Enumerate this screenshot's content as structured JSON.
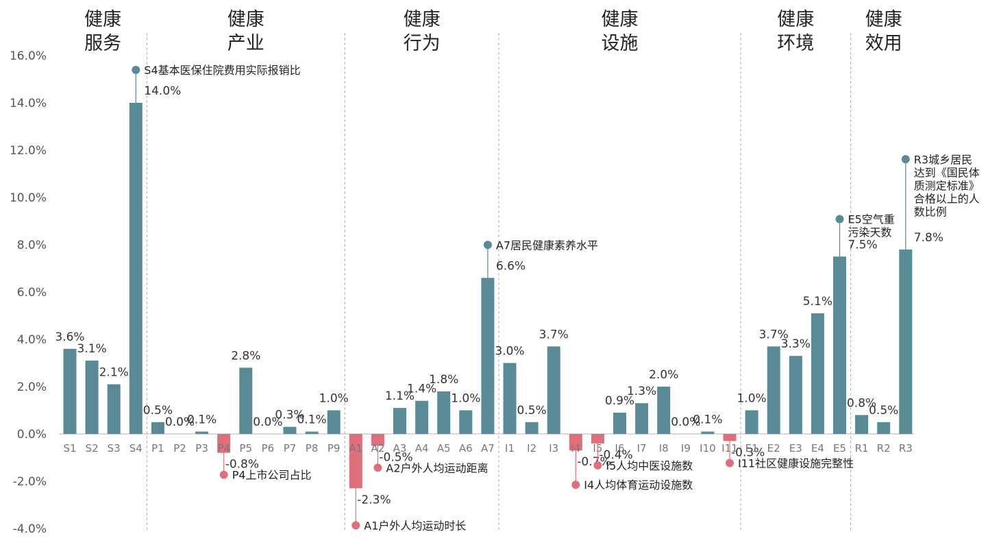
{
  "chart_data": {
    "type": "bar",
    "ylim": [
      -4,
      16
    ],
    "yticks": [
      "-4.0%",
      "-2.0%",
      "0.0%",
      "2.0%",
      "4.0%",
      "6.0%",
      "8.0%",
      "10.0%",
      "12.0%",
      "14.0%",
      "16.0%"
    ],
    "colors": {
      "positive": "#5a8a96",
      "negative": "#de6f7b",
      "axis": "#cccccc",
      "divider": "#b0b0b0"
    },
    "groups": [
      {
        "line1": "健康",
        "line2": "服务",
        "start": 0,
        "end": 3
      },
      {
        "line1": "健康",
        "line2": "产业",
        "start": 4,
        "end": 12
      },
      {
        "line1": "健康",
        "line2": "行为",
        "start": 13,
        "end": 19
      },
      {
        "line1": "健康",
        "line2": "设施",
        "start": 20,
        "end": 30
      },
      {
        "line1": "健康",
        "line2": "环境",
        "start": 31,
        "end": 35
      },
      {
        "line1": "健康",
        "line2": "效用",
        "start": 36,
        "end": 38
      }
    ],
    "categories": [
      "S1",
      "S2",
      "S3",
      "S4",
      "P1",
      "P2",
      "P3",
      "P4",
      "P5",
      "P6",
      "P7",
      "P8",
      "P9",
      "A1",
      "A2",
      "A3",
      "A4",
      "A5",
      "A6",
      "A7",
      "I1",
      "I2",
      "I3",
      "I4",
      "I5",
      "I6",
      "I7",
      "I8",
      "I9",
      "I10",
      "I11",
      "E1",
      "E2",
      "E3",
      "E4",
      "E5",
      "R1",
      "R2",
      "R3"
    ],
    "values": [
      3.6,
      3.1,
      2.1,
      14.0,
      0.5,
      0.0,
      0.1,
      -0.8,
      2.8,
      0.0,
      0.3,
      0.1,
      1.0,
      -2.3,
      -0.5,
      1.1,
      1.4,
      1.8,
      1.0,
      6.6,
      3.0,
      0.5,
      3.7,
      -0.7,
      -0.4,
      0.9,
      1.3,
      2.0,
      0.0,
      0.1,
      -0.3,
      1.0,
      3.7,
      3.3,
      5.1,
      7.5,
      0.8,
      0.5,
      7.8
    ],
    "value_labels": [
      "3.6%",
      "3.1%",
      "2.1%",
      "14.0%",
      "0.5%",
      "0.0%",
      "0.1%",
      "-0.8%",
      "2.8%",
      "0.0%",
      "0.3%",
      "0.1%",
      "1.0%",
      "-2.3%",
      "-0.5%",
      "1.1%",
      "1.4%",
      "1.8%",
      "1.0%",
      "6.6%",
      "3.0%",
      "0.5%",
      "3.7%",
      "-0.7%",
      "-0.4%",
      "0.9%",
      "1.3%",
      "2.0%",
      "0.0%",
      "0.1%",
      "-0.3%",
      "1.0%",
      "3.7%",
      "3.3%",
      "5.1%",
      "7.5%",
      "0.8%",
      "0.5%",
      "7.8%"
    ],
    "callouts": [
      {
        "index": 3,
        "lines": [
          "S4基本医保住院费用实际报销比"
        ]
      },
      {
        "index": 7,
        "lines": [
          "P4上市公司占比"
        ]
      },
      {
        "index": 13,
        "lines": [
          "A1户外人均运动时长"
        ]
      },
      {
        "index": 14,
        "lines": [
          "A2户外人均运动距离"
        ]
      },
      {
        "index": 19,
        "lines": [
          "A7居民健康素养水平"
        ]
      },
      {
        "index": 23,
        "lines": [
          "I4人均体育运动设施数"
        ]
      },
      {
        "index": 24,
        "lines": [
          "I5人均中医设施数"
        ]
      },
      {
        "index": 30,
        "lines": [
          "I11社区健康设施完整性"
        ]
      },
      {
        "index": 35,
        "lines": [
          "E5空气重",
          "污染天数"
        ]
      },
      {
        "index": 38,
        "lines": [
          "R3城乡居民",
          "达到《国民体",
          "质测定标准》",
          "合格以上的人",
          "数比例"
        ]
      }
    ]
  }
}
